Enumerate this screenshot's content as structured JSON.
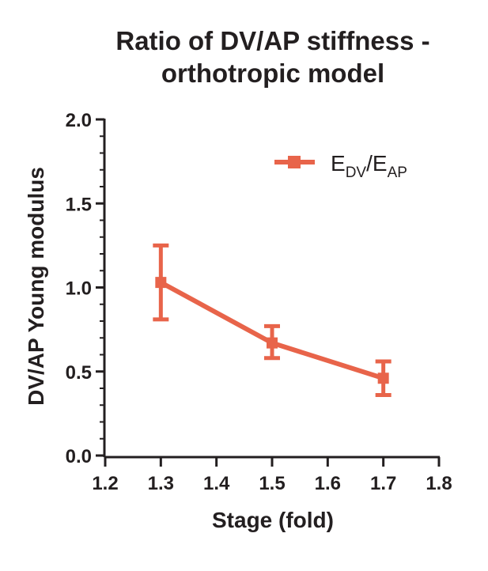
{
  "chart_data": {
    "type": "line",
    "title_lines": [
      "Ratio of DV/AP stiffness -",
      "orthotropic model"
    ],
    "xlabel": "Stage (fold)",
    "ylabel": "DV/AP Young modulus",
    "xlim": [
      1.2,
      1.8
    ],
    "ylim": [
      0.0,
      2.0
    ],
    "x_ticks": [
      "1.2",
      "1.3",
      "1.4",
      "1.5",
      "1.6",
      "1.7",
      "1.8"
    ],
    "y_ticks": [
      "0.0",
      "0.5",
      "1.0",
      "1.5",
      "2.0"
    ],
    "grid": false,
    "legend_position": "top-right",
    "legend": {
      "main": "E",
      "sub1": "DV",
      "sep": "/E",
      "sub2": "AP"
    },
    "series": [
      {
        "color": "#e8644a",
        "x": [
          1.3,
          1.5,
          1.7
        ],
        "y": [
          1.03,
          0.67,
          0.46
        ],
        "err_low": [
          0.81,
          0.58,
          0.36
        ],
        "err_high": [
          1.25,
          0.77,
          0.56
        ]
      }
    ]
  }
}
